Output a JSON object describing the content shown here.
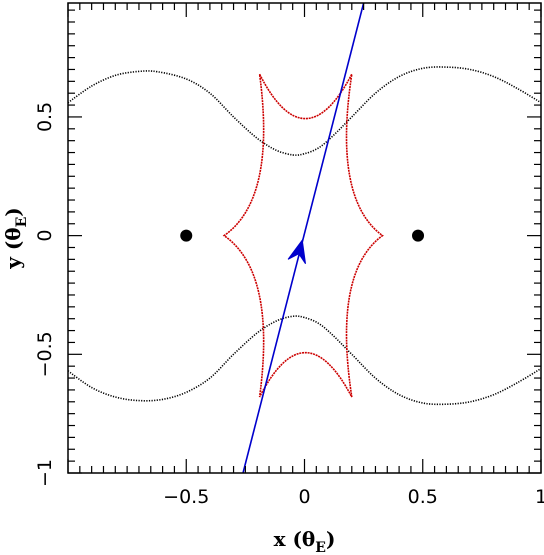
{
  "chart_data": {
    "type": "scatter",
    "title": "",
    "xlabel": "x (θE)",
    "ylabel": "y (θE)",
    "xlabel_parts": {
      "main": "x (θ",
      "sub": "E",
      "close": ")"
    },
    "ylabel_parts": {
      "main": "y (θ",
      "sub": "E",
      "close": ")"
    },
    "xlim": [
      -1,
      1
    ],
    "ylim": [
      -1,
      0.98
    ],
    "grid": false,
    "x_ticks": [
      -0.5,
      0,
      0.5,
      1
    ],
    "x_tick_labels": [
      "−0.5",
      "0",
      "0.5",
      "1"
    ],
    "y_ticks": [
      -1,
      -0.5,
      0,
      0.5
    ],
    "y_tick_labels": [
      "−1",
      "−0.5",
      "0",
      "0.5"
    ],
    "lens_positions": [
      {
        "x": -0.5,
        "y": 0.0
      },
      {
        "x": 0.48,
        "y": 0.0
      }
    ],
    "critical_curve": {
      "color": "#000000",
      "upper": {
        "x": [
          -1.0,
          -0.9,
          -0.8,
          -0.7,
          -0.62,
          -0.5,
          -0.4,
          -0.3,
          -0.2,
          -0.12,
          -0.05,
          0.0,
          0.06,
          0.12,
          0.2,
          0.3,
          0.4,
          0.5,
          0.6,
          0.7,
          0.8,
          0.9,
          1.0
        ],
        "y": [
          0.56,
          0.63,
          0.675,
          0.692,
          0.69,
          0.66,
          0.6,
          0.5,
          0.41,
          0.36,
          0.34,
          0.345,
          0.37,
          0.42,
          0.5,
          0.6,
          0.67,
          0.705,
          0.71,
          0.7,
          0.67,
          0.62,
          0.56
        ]
      },
      "lower": {
        "x": [
          -1.0,
          -0.9,
          -0.8,
          -0.7,
          -0.6,
          -0.5,
          -0.4,
          -0.3,
          -0.2,
          -0.12,
          -0.05,
          0.0,
          0.06,
          0.12,
          0.2,
          0.3,
          0.4,
          0.5,
          0.6,
          0.7,
          0.8,
          0.9,
          1.0
        ],
        "y": [
          -0.57,
          -0.64,
          -0.68,
          -0.695,
          -0.69,
          -0.66,
          -0.6,
          -0.5,
          -0.41,
          -0.36,
          -0.34,
          -0.345,
          -0.37,
          -0.42,
          -0.5,
          -0.6,
          -0.67,
          -0.705,
          -0.71,
          -0.7,
          -0.67,
          -0.62,
          -0.56
        ]
      }
    },
    "caustic": {
      "color": "#cc0000",
      "cusps": [
        {
          "x": -0.19,
          "y": 0.68
        },
        {
          "x": 0.2,
          "y": 0.68
        },
        {
          "x": 0.33,
          "y": 0.0
        },
        {
          "x": 0.2,
          "y": -0.68
        },
        {
          "x": -0.19,
          "y": -0.68
        },
        {
          "x": -0.34,
          "y": 0.0
        }
      ]
    },
    "source_trajectory": {
      "color": "#0000cc",
      "start": {
        "x": -0.26,
        "y": -1.0
      },
      "end": {
        "x": 0.25,
        "y": 0.98
      },
      "arrow_at": {
        "x": -0.02,
        "y": -0.06
      }
    }
  }
}
